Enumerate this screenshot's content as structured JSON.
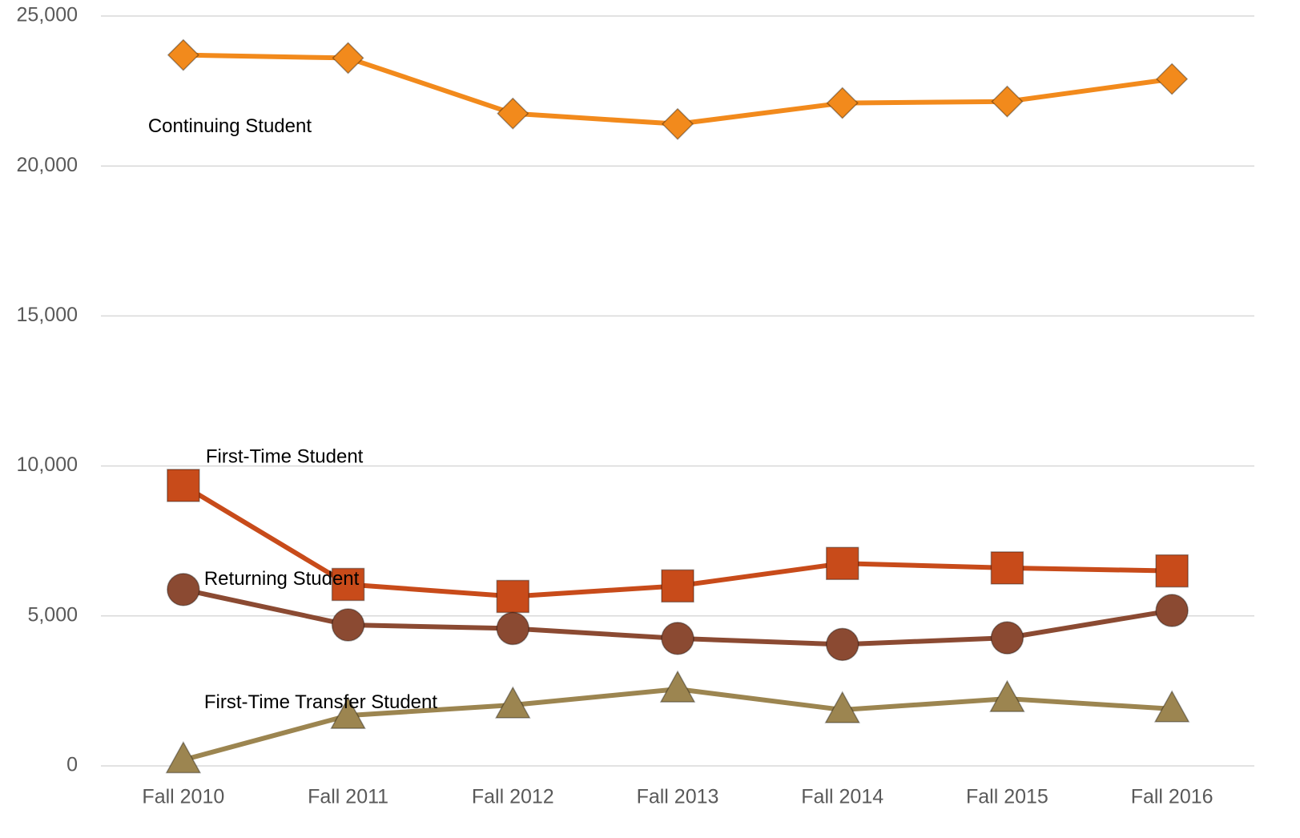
{
  "chart_data": {
    "type": "line",
    "categories": [
      "Fall 2010",
      "Fall 2011",
      "Fall 2012",
      "Fall 2013",
      "Fall 2014",
      "Fall 2015",
      "Fall 2016"
    ],
    "series": [
      {
        "name": "Continuing Student",
        "color": "#f28a1c",
        "marker": "diamond",
        "values": [
          23700,
          23600,
          21750,
          21400,
          22100,
          22150,
          22900
        ]
      },
      {
        "name": "First-Time Student",
        "color": "#c84b1a",
        "marker": "square",
        "values": [
          9350,
          6050,
          5650,
          6000,
          6750,
          6600,
          6500
        ]
      },
      {
        "name": "Returning Student",
        "color": "#8b4a32",
        "marker": "circle",
        "values": [
          5880,
          4700,
          4580,
          4250,
          4050,
          4270,
          5180
        ]
      },
      {
        "name": "First-Time Transfer Student",
        "color": "#9c8550",
        "marker": "triangle",
        "values": [
          200,
          1680,
          2030,
          2560,
          1870,
          2240,
          1900
        ]
      }
    ],
    "ylim": [
      0,
      25000
    ],
    "yticks": [
      0,
      {
        "value": 5000,
        "label": "5,000"
      },
      {
        "value": 10000,
        "label": "10,000"
      },
      {
        "value": 15000,
        "label": "15,000"
      },
      {
        "value": 20000,
        "label": "20,000"
      },
      {
        "value": 25000,
        "label": "25,000"
      }
    ],
    "grid": true
  }
}
